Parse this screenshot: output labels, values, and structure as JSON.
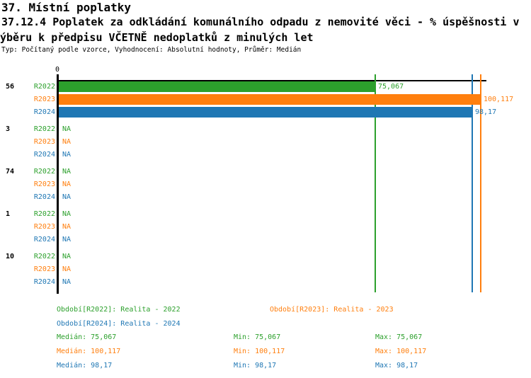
{
  "header": {
    "title": "37. Místní poplatky",
    "subtitle_line1": "37.12.4 Poplatek za odkládání komunálního odpadu z nemovité věci - % úspěšnosti v",
    "subtitle_line2": "ýběru k předpisu VČETNĚ nedoplatků z minulých let",
    "meta": "Typ: Počítaný podle vzorce, Vyhodnocení: Absolutní hodnoty, Průměr: Medián"
  },
  "colors": {
    "R2022": "#2ca02c",
    "R2023": "#ff7f0e",
    "R2024": "#1f77b4",
    "axis": "#000000"
  },
  "chart_data": {
    "type": "bar",
    "orientation": "horizontal",
    "title": "37.12.4 Poplatek za odkládání komunálního odpadu z nemovité věci - % úspěšnosti ve výběru k předpisu VČETNĚ nedoplatků z minulých let",
    "series": [
      "R2022",
      "R2023",
      "R2024"
    ],
    "xlim": [
      0,
      100.117
    ],
    "zero_tick": "0",
    "grid": false,
    "na_text": "NA",
    "groups": [
      {
        "label": "56",
        "values": [
          75.067,
          100.117,
          98.17
        ],
        "displays": [
          "75,067",
          "100,117",
          "98,17"
        ]
      },
      {
        "label": "3",
        "values": [
          null,
          null,
          null
        ],
        "displays": [
          "NA",
          "NA",
          "NA"
        ]
      },
      {
        "label": "74",
        "values": [
          null,
          null,
          null
        ],
        "displays": [
          "NA",
          "NA",
          "NA"
        ]
      },
      {
        "label": "1",
        "values": [
          null,
          null,
          null
        ],
        "displays": [
          "NA",
          "NA",
          "NA"
        ]
      },
      {
        "label": "10",
        "values": [
          null,
          null,
          null
        ],
        "displays": [
          "NA",
          "NA",
          "NA"
        ]
      }
    ],
    "reference_lines": [
      {
        "series": "R2022",
        "value": 75.067
      },
      {
        "series": "R2024",
        "value": 98.17
      },
      {
        "series": "R2023",
        "value": 100.117
      }
    ]
  },
  "legend": {
    "period_rows": [
      [
        {
          "series": "R2022",
          "text": "Období[R2022]: Realita - 2022",
          "col": 0
        },
        {
          "series": "R2023",
          "text": "Období[R2023]: Realita - 2023",
          "col": 1
        }
      ],
      [
        {
          "series": "R2024",
          "text": "Období[R2024]: Realita - 2024",
          "col": 0
        }
      ]
    ],
    "stat_rows": [
      {
        "series": "R2022",
        "median": "Medián: 75,067",
        "min": "Min: 75,067",
        "max": "Max: 75,067"
      },
      {
        "series": "R2023",
        "median": "Medián: 100,117",
        "min": "Min: 100,117",
        "max": "Max: 100,117"
      },
      {
        "series": "R2024",
        "median": "Medián: 98,17",
        "min": "Min: 98,17",
        "max": "Max: 98,17"
      }
    ]
  }
}
